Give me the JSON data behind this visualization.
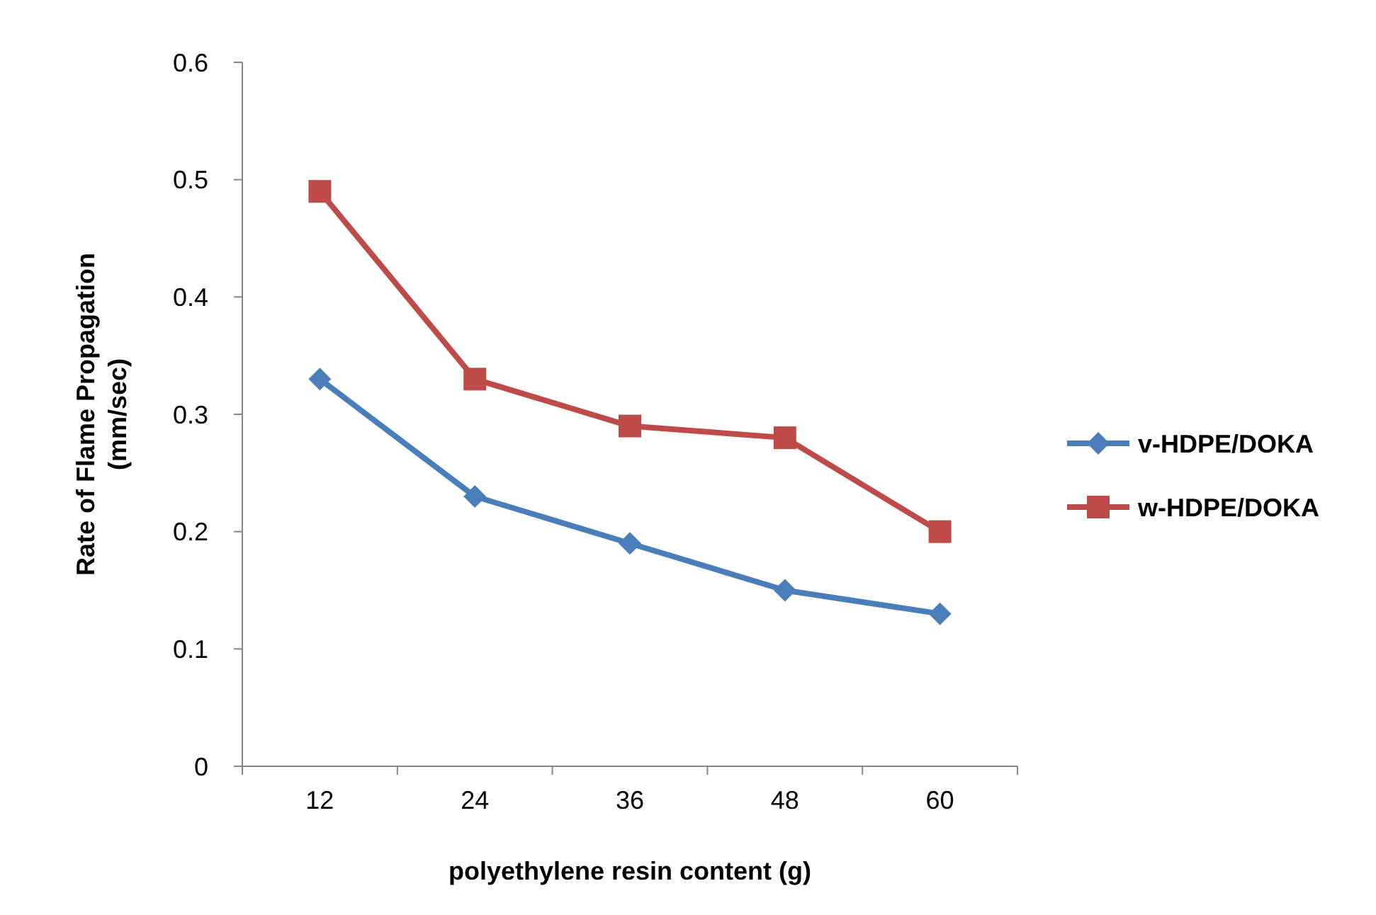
{
  "chart_data": {
    "type": "line",
    "xlabel": "polyethylene resin content (g)",
    "ylabel": "Rate of Flame Propagation (mm/sec)",
    "categories": [
      "12",
      "24",
      "36",
      "48",
      "60"
    ],
    "ylim": [
      0,
      0.6
    ],
    "yticks": [
      0,
      0.1,
      0.2,
      0.3,
      0.4,
      0.5,
      0.6
    ],
    "grid": false,
    "legend": "right",
    "line_style": "solid",
    "series": [
      {
        "name": "v-HDPE/DOKA",
        "color": "#4a7ebb",
        "marker": "diamond",
        "values": [
          0.33,
          0.23,
          0.19,
          0.15,
          0.13
        ]
      },
      {
        "name": "w-HDPE/DOKA",
        "color": "#be4b48",
        "marker": "square",
        "values": [
          0.49,
          0.33,
          0.29,
          0.28,
          0.2
        ]
      }
    ]
  }
}
